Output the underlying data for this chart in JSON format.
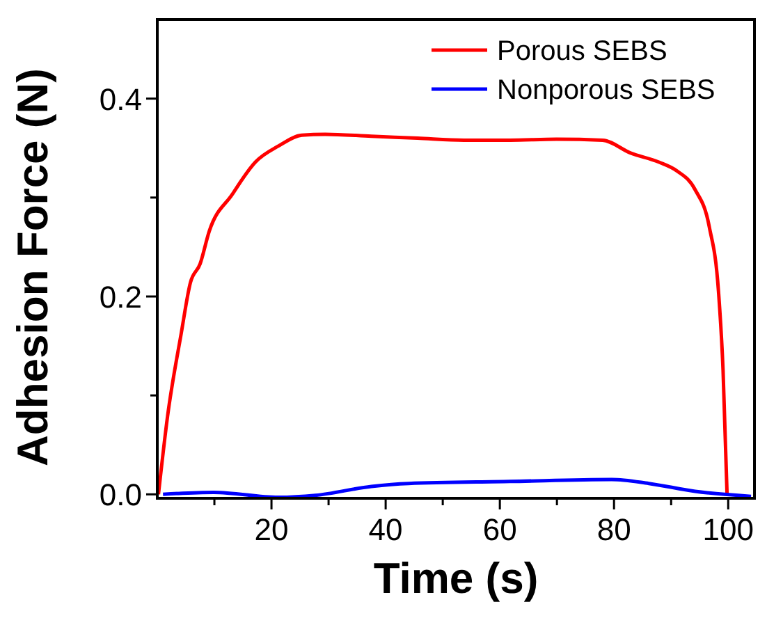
{
  "chart_data": {
    "type": "line",
    "xlabel": "Time (s)",
    "ylabel": "Adhesion Force (N)",
    "xlim": [
      0,
      104.6
    ],
    "ylim": [
      -0.004,
      0.48
    ],
    "xticks": [
      {
        "value": 10,
        "label": null
      },
      20,
      {
        "value": 30,
        "label": null
      },
      40,
      {
        "value": 50,
        "label": null
      },
      60,
      {
        "value": 70,
        "label": null
      },
      80,
      {
        "value": 90,
        "label": null
      },
      100
    ],
    "yticks": [
      {
        "value": 0,
        "label": "0.0"
      },
      {
        "value": 0.1,
        "label": null
      },
      {
        "value": 0.2,
        "label": "0.2"
      },
      {
        "value": 0.3,
        "label": null
      },
      {
        "value": 0.4,
        "label": "0.4"
      }
    ],
    "legend": "top right",
    "grid": false,
    "line_style": "solid",
    "marker": "none",
    "series": [
      {
        "name": "Porous SEBS",
        "color": "#ff0000",
        "x": [
          0.2,
          1.8,
          4.2,
          5.8,
          7.5,
          9.1,
          13.1,
          17.2,
          21.2,
          25.3,
          29.4,
          37.5,
          45.6,
          53.7,
          61.8,
          69.9,
          78,
          82.9,
          87.8,
          91,
          94.2,
          96.7,
          98.3,
          99.1,
          99.8
        ],
        "values": [
          0,
          0.079,
          0.163,
          0.214,
          0.233,
          0.266,
          0.303,
          0.336,
          0.352,
          0.363,
          0.364,
          0.362,
          0.36,
          0.358,
          0.358,
          0.359,
          0.358,
          0.345,
          0.336,
          0.327,
          0.308,
          0.27,
          0.205,
          0.125,
          0
        ]
      },
      {
        "name": "Nonporous SEBS",
        "color": "#0000ff",
        "x": [
          1,
          9.9,
          21.2,
          27.7,
          37.5,
          44,
          61.8,
          79.6,
          86.1,
          94.2,
          104
        ],
        "values": [
          0,
          0.002,
          -0.003,
          -0.001,
          0.008,
          0.011,
          0.013,
          0.015,
          0.011,
          0.003,
          -0.002
        ]
      }
    ]
  }
}
